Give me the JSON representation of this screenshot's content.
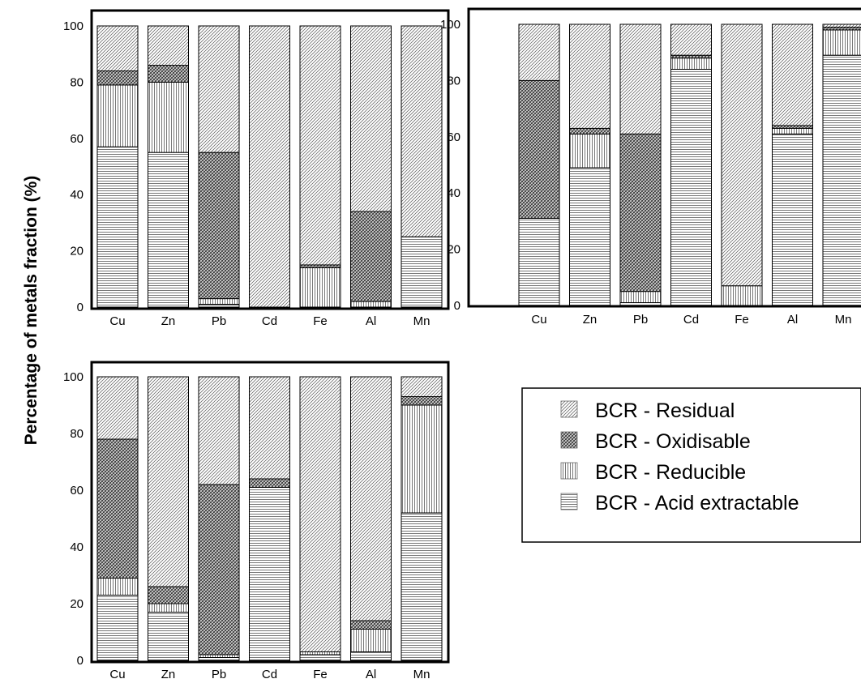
{
  "ylabel": "Percentage of metals fraction (%)",
  "legend": {
    "items": [
      {
        "label": "BCR - Residual",
        "pattern": "residual"
      },
      {
        "label": "BCR - Oxidisable",
        "pattern": "oxidisable"
      },
      {
        "label": "BCR - Reducible",
        "pattern": "reducible"
      },
      {
        "label": "BCR - Acid extractable",
        "pattern": "acid"
      }
    ]
  },
  "chart_data": [
    {
      "type": "bar",
      "stacked": true,
      "categories": [
        "Cu",
        "Zn",
        "Pb",
        "Cd",
        "Fe",
        "Al",
        "Mn"
      ],
      "ylim": [
        0,
        100
      ],
      "yticks": [
        0,
        20,
        40,
        60,
        80,
        100
      ],
      "series": [
        {
          "name": "BCR - Acid extractable",
          "values": [
            57,
            55,
            1,
            0,
            0,
            0,
            25
          ]
        },
        {
          "name": "BCR - Reducible",
          "values": [
            22,
            25,
            2,
            0,
            14,
            2,
            0
          ]
        },
        {
          "name": "BCR - Oxidisable",
          "values": [
            5,
            6,
            52,
            0,
            1,
            32,
            0
          ]
        },
        {
          "name": "BCR - Residual",
          "values": [
            16,
            14,
            45,
            100,
            85,
            66,
            75
          ]
        }
      ]
    },
    {
      "type": "bar",
      "stacked": true,
      "categories": [
        "Cu",
        "Zn",
        "Pb",
        "Cd",
        "Fe",
        "Al",
        "Mn"
      ],
      "ylim": [
        0,
        100
      ],
      "yticks": [
        0,
        20,
        40,
        60,
        80,
        100
      ],
      "series": [
        {
          "name": "BCR - Acid extractable",
          "values": [
            31,
            49,
            1,
            84,
            0,
            61,
            89
          ]
        },
        {
          "name": "BCR - Reducible",
          "values": [
            0,
            12,
            4,
            4,
            7,
            2,
            9
          ]
        },
        {
          "name": "BCR - Oxidisable",
          "values": [
            49,
            2,
            56,
            1,
            0,
            1,
            1
          ]
        },
        {
          "name": "BCR - Residual",
          "values": [
            20,
            37,
            39,
            11,
            93,
            36,
            1
          ]
        }
      ]
    },
    {
      "type": "bar",
      "stacked": true,
      "categories": [
        "Cu",
        "Zn",
        "Pb",
        "Cd",
        "Fe",
        "Al",
        "Mn"
      ],
      "ylim": [
        0,
        100
      ],
      "yticks": [
        0,
        20,
        40,
        60,
        80,
        100
      ],
      "series": [
        {
          "name": "BCR - Acid extractable",
          "values": [
            23,
            17,
            1,
            61,
            2,
            3,
            52
          ]
        },
        {
          "name": "BCR - Reducible",
          "values": [
            6,
            3,
            1,
            0,
            1,
            8,
            38
          ]
        },
        {
          "name": "BCR - Oxidisable",
          "values": [
            49,
            6,
            60,
            3,
            0,
            3,
            3
          ]
        },
        {
          "name": "BCR - Residual",
          "values": [
            22,
            74,
            38,
            36,
            97,
            86,
            7
          ]
        }
      ]
    }
  ]
}
